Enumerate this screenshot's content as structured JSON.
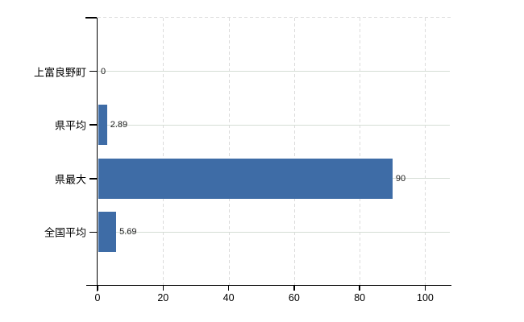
{
  "chart_data": {
    "type": "bar",
    "orientation": "horizontal",
    "title": "",
    "xlabel": "",
    "ylabel": "",
    "categories": [
      "上富良野町",
      "県平均",
      "県最大",
      "全国平均"
    ],
    "values": [
      0,
      2.89,
      90,
      5.69
    ],
    "value_labels": [
      "0",
      "2.89",
      "90",
      "5.69"
    ],
    "x_ticks": [
      0,
      20,
      40,
      60,
      80,
      100
    ],
    "x_tick_labels": [
      "0",
      "20",
      "40",
      "60",
      "80",
      "100"
    ],
    "xlim": [
      0,
      108
    ],
    "grid": "on",
    "legend": "none",
    "colors": {
      "bar": "#3e6ca6",
      "axis": "#000000",
      "grid_vertical": "#dcdcdc",
      "grid_horizontal": "#d5ddd5",
      "background": "#ffffff",
      "text": "#000000"
    }
  }
}
